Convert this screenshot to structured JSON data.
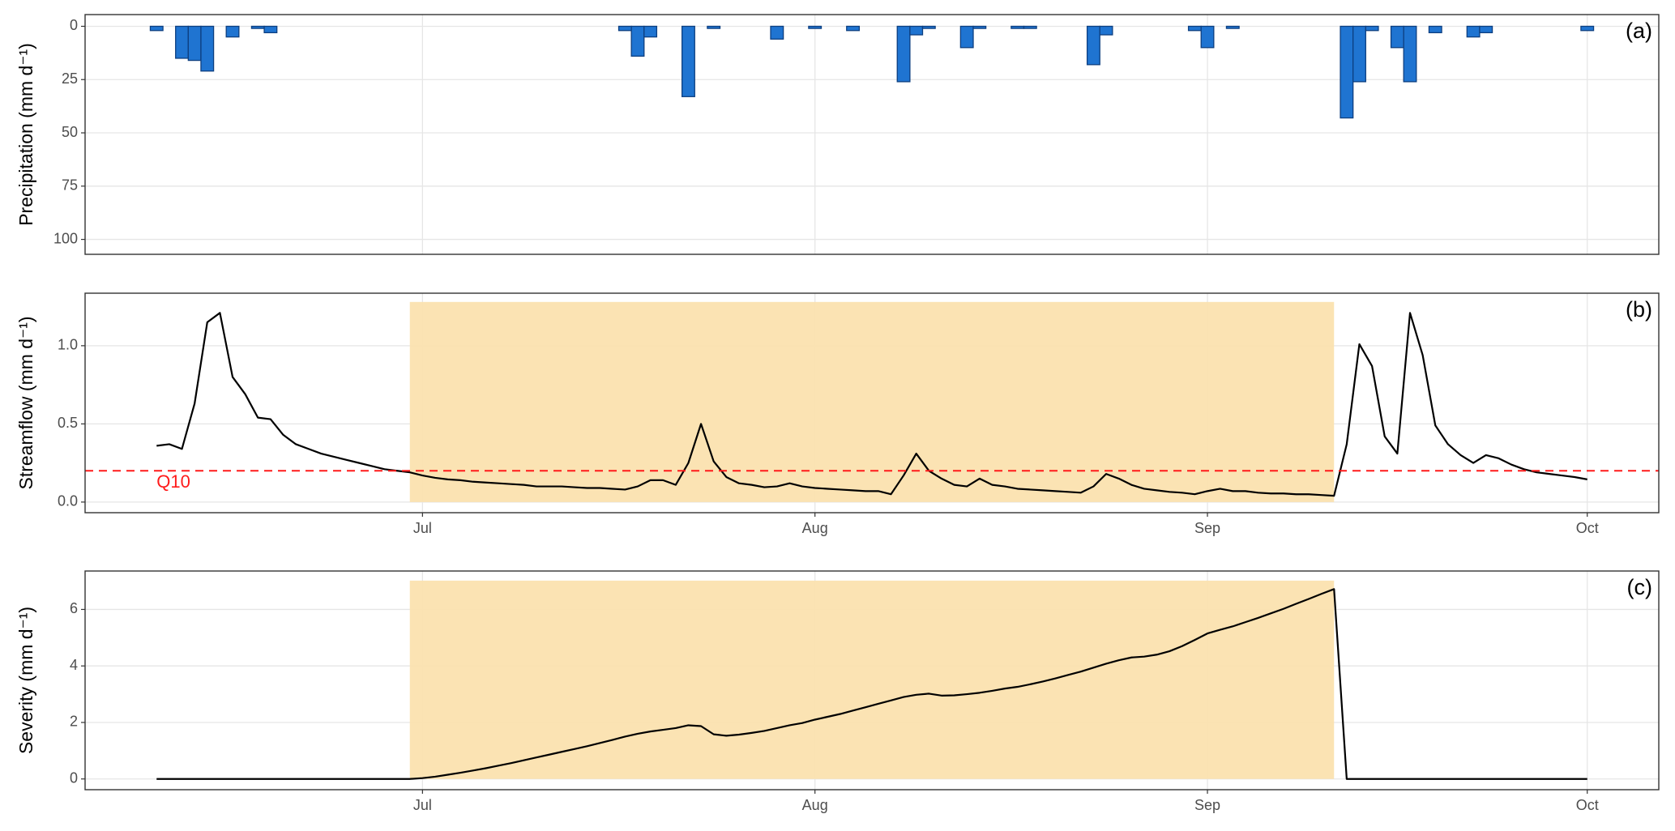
{
  "chart_data": [
    {
      "type": "bar",
      "panel_label": "(a)",
      "ylabel": "Precipitation (mm d⁻¹)",
      "x": [
        161,
        163,
        164,
        165,
        167,
        169,
        170,
        198,
        199,
        200,
        203,
        205,
        210,
        213,
        216,
        220,
        221,
        222,
        225,
        226,
        229,
        230,
        235,
        236,
        243,
        244,
        246,
        255,
        256,
        257,
        259,
        260,
        262,
        265,
        266,
        274
      ],
      "values": [
        2,
        15,
        16,
        21,
        5,
        1,
        3,
        2,
        14,
        5,
        33,
        1,
        6,
        1,
        2,
        26,
        4,
        1,
        10,
        1,
        1,
        1,
        18,
        4,
        2,
        10,
        1,
        43,
        26,
        2,
        10,
        26,
        3,
        5,
        3,
        2
      ],
      "color": "#1f74d1",
      "edge_color": "#0d3f80",
      "xlim": [
        155.35,
        279.65
      ],
      "xticks": [
        182,
        213,
        244,
        274
      ],
      "ylim": [
        107,
        -5.5
      ],
      "yticks": [
        0,
        25,
        50,
        75,
        100
      ],
      "grid": true
    },
    {
      "type": "line",
      "panel_label": "(b)",
      "ylabel": "Streamflow (mm d⁻¹)",
      "x": [
        161,
        162,
        163,
        164,
        165,
        166,
        167,
        168,
        169,
        170,
        171,
        172,
        173,
        174,
        175,
        176,
        177,
        178,
        179,
        180,
        181,
        182,
        183,
        184,
        185,
        186,
        187,
        188,
        189,
        190,
        191,
        192,
        193,
        194,
        195,
        196,
        197,
        198,
        199,
        200,
        201,
        202,
        203,
        204,
        205,
        206,
        207,
        208,
        209,
        210,
        211,
        212,
        213,
        214,
        215,
        216,
        217,
        218,
        219,
        220,
        221,
        222,
        223,
        224,
        225,
        226,
        227,
        228,
        229,
        230,
        231,
        232,
        233,
        234,
        235,
        236,
        237,
        238,
        239,
        240,
        241,
        242,
        243,
        244,
        245,
        246,
        247,
        248,
        249,
        250,
        251,
        252,
        253,
        254,
        255,
        256,
        257,
        258,
        259,
        260,
        261,
        262,
        263,
        264,
        265,
        266,
        267,
        268,
        269,
        270,
        271,
        272,
        273,
        274
      ],
      "values": [
        0.36,
        0.37,
        0.34,
        0.63,
        1.15,
        1.21,
        0.8,
        0.69,
        0.54,
        0.53,
        0.43,
        0.37,
        0.34,
        0.31,
        0.29,
        0.27,
        0.25,
        0.23,
        0.21,
        0.2,
        0.19,
        0.17,
        0.155,
        0.145,
        0.14,
        0.13,
        0.125,
        0.12,
        0.115,
        0.11,
        0.1,
        0.1,
        0.1,
        0.095,
        0.09,
        0.09,
        0.085,
        0.08,
        0.1,
        0.14,
        0.14,
        0.11,
        0.25,
        0.5,
        0.26,
        0.16,
        0.12,
        0.11,
        0.095,
        0.1,
        0.12,
        0.1,
        0.09,
        0.085,
        0.08,
        0.075,
        0.07,
        0.07,
        0.05,
        0.17,
        0.31,
        0.2,
        0.15,
        0.11,
        0.1,
        0.15,
        0.11,
        0.1,
        0.085,
        0.08,
        0.075,
        0.07,
        0.065,
        0.06,
        0.1,
        0.18,
        0.15,
        0.11,
        0.085,
        0.075,
        0.065,
        0.06,
        0.05,
        0.07,
        0.085,
        0.07,
        0.07,
        0.06,
        0.055,
        0.055,
        0.05,
        0.05,
        0.045,
        0.04,
        0.37,
        1.01,
        0.87,
        0.42,
        0.31,
        1.21,
        0.94,
        0.49,
        0.37,
        0.3,
        0.25,
        0.3,
        0.28,
        0.24,
        0.21,
        0.19,
        0.18,
        0.17,
        0.16,
        0.145
      ],
      "color": "#000000",
      "highlight": {
        "x": [
          181,
          254
        ],
        "y": [
          0,
          1.28
        ]
      },
      "highlight_color": "#fbe2af",
      "threshold": 0.2,
      "threshold_label": "Q10",
      "threshold_color": "#ff1a1a",
      "xlim": [
        155.35,
        279.65
      ],
      "xticks": [
        {
          "value": 182,
          "label": "Jul"
        },
        {
          "value": 213,
          "label": "Aug"
        },
        {
          "value": 244,
          "label": "Sep"
        },
        {
          "value": 274,
          "label": "Oct"
        }
      ],
      "ylim": [
        -0.068,
        1.336
      ],
      "yticks": [
        {
          "value": 0,
          "label": "0.0"
        },
        0.5,
        {
          "value": 1,
          "label": "1.0"
        }
      ],
      "grid": true
    },
    {
      "type": "line",
      "panel_label": "(c)",
      "ylabel": "Severity (mm d⁻¹)",
      "x": [
        161,
        162,
        163,
        164,
        165,
        166,
        167,
        168,
        169,
        170,
        171,
        172,
        173,
        174,
        175,
        176,
        177,
        178,
        179,
        180,
        181,
        182,
        183,
        184,
        185,
        186,
        187,
        188,
        189,
        190,
        191,
        192,
        193,
        194,
        195,
        196,
        197,
        198,
        199,
        200,
        201,
        202,
        203,
        204,
        205,
        206,
        207,
        208,
        209,
        210,
        211,
        212,
        213,
        214,
        215,
        216,
        217,
        218,
        219,
        220,
        221,
        222,
        223,
        224,
        225,
        226,
        227,
        228,
        229,
        230,
        231,
        232,
        233,
        234,
        235,
        236,
        237,
        238,
        239,
        240,
        241,
        242,
        243,
        244,
        245,
        246,
        247,
        248,
        249,
        250,
        251,
        252,
        253,
        254,
        255,
        256,
        257,
        258,
        259,
        260,
        261,
        262,
        263,
        264,
        265,
        266,
        267,
        268,
        269,
        270,
        271,
        272,
        273,
        274
      ],
      "values": [
        0,
        0,
        0,
        0,
        0,
        0,
        0,
        0,
        0,
        0,
        0,
        0,
        0,
        0,
        0,
        0,
        0,
        0,
        0,
        0,
        0,
        0.03,
        0.08,
        0.15,
        0.22,
        0.3,
        0.38,
        0.47,
        0.56,
        0.66,
        0.76,
        0.86,
        0.96,
        1.06,
        1.16,
        1.27,
        1.38,
        1.5,
        1.6,
        1.68,
        1.74,
        1.8,
        1.9,
        1.87,
        1.58,
        1.53,
        1.57,
        1.63,
        1.7,
        1.8,
        1.9,
        1.98,
        2.1,
        2.2,
        2.3,
        2.42,
        2.54,
        2.66,
        2.78,
        2.9,
        2.98,
        3.02,
        2.95,
        2.96,
        3.0,
        3.05,
        3.12,
        3.2,
        3.26,
        3.35,
        3.45,
        3.56,
        3.68,
        3.8,
        3.94,
        4.08,
        4.2,
        4.3,
        4.33,
        4.4,
        4.52,
        4.7,
        4.92,
        5.15,
        5.28,
        5.4,
        5.55,
        5.7,
        5.86,
        6.02,
        6.2,
        6.37,
        6.55,
        6.72,
        0,
        0,
        0,
        0,
        0,
        0,
        0,
        0,
        0,
        0,
        0,
        0,
        0,
        0,
        0,
        0,
        0,
        0,
        0,
        0
      ],
      "color": "#000000",
      "highlight": {
        "x": [
          181,
          254
        ],
        "y": [
          0,
          7.02
        ]
      },
      "highlight_color": "#fbe2af",
      "xlim": [
        155.35,
        279.65
      ],
      "xticks": [
        {
          "value": 182,
          "label": "Jul"
        },
        {
          "value": 213,
          "label": "Aug"
        },
        {
          "value": 244,
          "label": "Sep"
        },
        {
          "value": 274,
          "label": "Oct"
        }
      ],
      "ylim": [
        -0.38,
        7.36
      ],
      "yticks": [
        0,
        2,
        4,
        6
      ],
      "grid": true
    }
  ]
}
